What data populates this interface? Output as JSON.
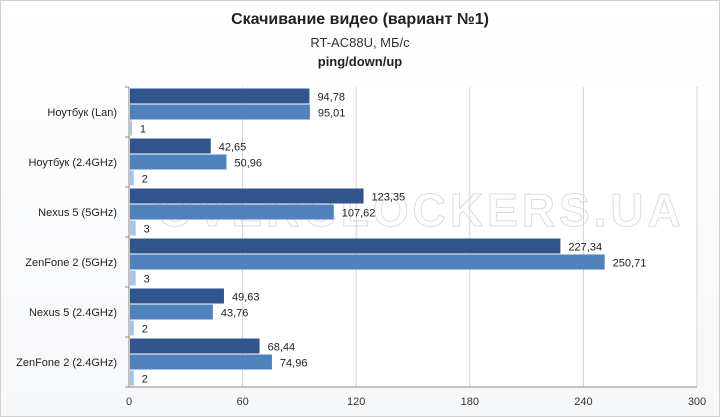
{
  "chart_data": {
    "type": "bar",
    "orientation": "horizontal",
    "title": "Скачивание видео (вариант №1)",
    "subtitle": "RT-AC88U, МБ/с",
    "subtitle2": "ping/down/up",
    "categories": [
      "Ноутбук (Lan)",
      "Ноутбук (2.4GHz)",
      "Nexus 5 (5GHz)",
      "ZenFone 2 (5GHz)",
      "Nexus 5 (2.4GHz)",
      "ZenFone 2 (2.4GHz)"
    ],
    "series": [
      {
        "values": [
          94.78,
          42.65,
          123.35,
          227.34,
          49.63,
          68.44
        ],
        "labels": [
          "94,78",
          "42,65",
          "123,35",
          "227,34",
          "49,63",
          "68,44"
        ],
        "color": "#30558c"
      },
      {
        "values": [
          95.01,
          50.96,
          107.62,
          250.71,
          43.76,
          74.96
        ],
        "labels": [
          "95,01",
          "50,96",
          "107,62",
          "250,71",
          "43,76",
          "74,96"
        ],
        "color": "#4f81bd"
      },
      {
        "values": [
          1,
          2,
          3,
          3,
          2,
          2
        ],
        "labels": [
          "1",
          "2",
          "3",
          "3",
          "2",
          "2"
        ],
        "color": "#a9c4e6"
      }
    ],
    "xlim": [
      0,
      300
    ],
    "xticks": [
      0,
      60,
      120,
      180,
      240,
      300
    ],
    "grid": true,
    "legend": "none"
  },
  "watermark": "OVERCLOCKERS.UA"
}
